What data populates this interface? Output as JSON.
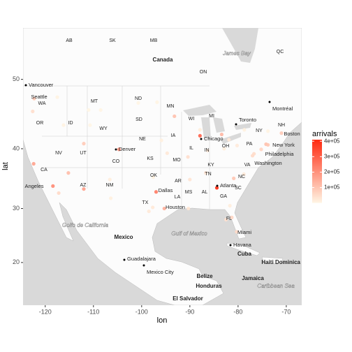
{
  "chart_data": {
    "type": "scatter",
    "projection": "mercator",
    "x_label": "lon",
    "y_label": "lat",
    "xlim": [
      -124.6,
      -66.8
    ],
    "ylim": [
      11.6,
      56.3
    ],
    "xticks": [
      -120,
      -110,
      -100,
      -90,
      -80,
      -70
    ],
    "yticks": [
      20,
      30,
      40,
      50
    ],
    "x": [
      -84.4,
      -87.9,
      -97.0,
      -104.7,
      -118.4,
      -95.3,
      -112.0,
      -122.4,
      -115.2,
      -122.3,
      -93.2,
      -83.4,
      -74.2,
      -73.8,
      -71.0,
      -80.9,
      -81.3,
      -80.3,
      -112.0,
      -75.2,
      -77.0,
      -90.4,
      -86.7,
      -90.0,
      -122.6,
      -117.2,
      -82.5,
      -76.7,
      -94.7,
      -81.9,
      -106.6,
      -106.4,
      -97.6,
      -95.9,
      -116.2,
      -108.5,
      -96.8,
      -80.2,
      -78.8,
      -90.3,
      -97.7,
      -98.5,
      -86.3,
      -82.9,
      -87.9,
      -117.5,
      -81.7,
      -78.7,
      -73.8,
      -111.0,
      -110.7,
      -100.7
    ],
    "y": [
      33.6,
      42.0,
      32.9,
      39.9,
      33.9,
      30.0,
      33.4,
      37.6,
      36.1,
      47.4,
      44.9,
      42.2,
      40.7,
      40.6,
      42.4,
      35.2,
      28.4,
      25.8,
      40.8,
      39.9,
      38.9,
      38.7,
      36.1,
      35.0,
      45.6,
      32.7,
      28.0,
      39.2,
      39.3,
      41.4,
      35.0,
      31.8,
      35.4,
      41.3,
      43.6,
      45.8,
      46.9,
      40.5,
      35.9,
      30.0,
      30.2,
      29.5,
      39.7,
      40.0,
      42.9,
      47.6,
      30.5,
      42.9,
      42.7,
      45.8,
      43.6,
      46.8
    ],
    "values": [
      410000,
      300000,
      250000,
      200000,
      220000,
      150000,
      180000,
      170000,
      120000,
      100000,
      110000,
      130000,
      110000,
      100000,
      90000,
      100000,
      70000,
      60000,
      90000,
      70000,
      60000,
      50000,
      40000,
      40000,
      50000,
      60000,
      45000,
      55000,
      30000,
      30000,
      20000,
      15000,
      12000,
      15000,
      10000,
      5000,
      5000,
      25000,
      30000,
      35000,
      30000,
      28000,
      25000,
      20000,
      20000,
      8000,
      20000,
      12000,
      8000,
      4000,
      3000,
      3000
    ],
    "legend_title": "arrivals",
    "color_low": "#fff5e4",
    "color_high": "#ff2a10",
    "color_lim": [
      3000,
      410000
    ],
    "color_ticks": [
      {
        "value": 100000,
        "label": "1e+05"
      },
      {
        "value": 200000,
        "label": "2e+05"
      },
      {
        "value": 300000,
        "label": "3e+05"
      },
      {
        "value": 400000,
        "label": "4e+05"
      }
    ],
    "map_labels": [
      "AB",
      "SK",
      "MB",
      "Canada",
      "James Bay",
      "QC",
      "ON",
      "Vancouver",
      "Seattle",
      "WA",
      "MT",
      "ND",
      "MN",
      "Montréal",
      "OR",
      "ID",
      "SD",
      "WI",
      "MI",
      "Toronto",
      "NY",
      "NH",
      "WY",
      "IA",
      "Chicago",
      "OH",
      "PA",
      "Boston",
      "New York",
      "NV",
      "UT",
      "CO",
      "NE",
      "Denver",
      "IL",
      "IN",
      "Philadelphia",
      "CA",
      "KS",
      "MO",
      "KY",
      "VA",
      "Washington",
      "TN",
      "NC",
      "AZ",
      "NM",
      "OK",
      "AR",
      "SC",
      "Angeles",
      "Dallas",
      "MS",
      "AL",
      "GA",
      "TX",
      "LA",
      "Houston",
      "FL",
      "Golfo de California",
      "Gulf of Mexico",
      "Mexico",
      "Miami",
      "Havana",
      "Cuba",
      "Haiti",
      "Dominica",
      "Guadalajara",
      "Mexico City",
      "Belize",
      "Honduras",
      "Jamaica",
      "Caribbean Sea",
      "El Salvador",
      "Atlanta"
    ]
  }
}
